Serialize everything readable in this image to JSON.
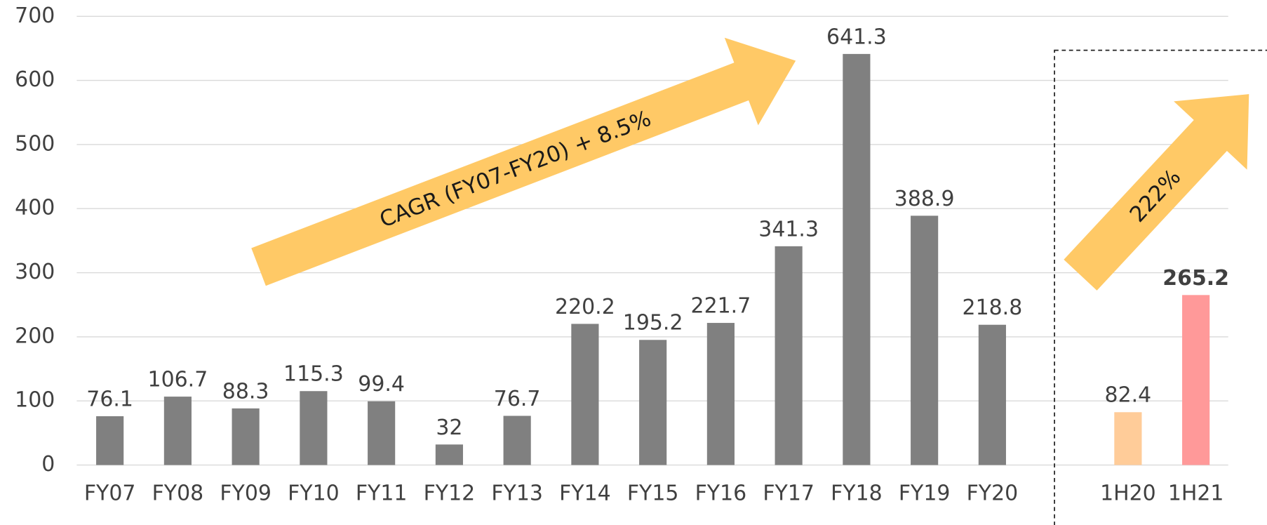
{
  "chart_data": {
    "type": "bar",
    "categories": [
      "FY07",
      "FY08",
      "FY09",
      "FY10",
      "FY11",
      "FY12",
      "FY13",
      "FY14",
      "FY15",
      "FY16",
      "FY17",
      "FY18",
      "FY19",
      "FY20",
      null,
      "1H20",
      "1H21"
    ],
    "values": [
      76.1,
      106.7,
      88.3,
      115.3,
      99.4,
      32,
      76.7,
      220.2,
      195.2,
      221.7,
      341.3,
      641.3,
      388.9,
      218.8,
      null,
      82.4,
      265.2
    ],
    "colors": [
      "#808080",
      "#808080",
      "#808080",
      "#808080",
      "#808080",
      "#808080",
      "#808080",
      "#808080",
      "#808080",
      "#808080",
      "#808080",
      "#808080",
      "#808080",
      "#808080",
      null,
      "#ffcc99",
      "#ff9999"
    ],
    "ylim": [
      0,
      700
    ],
    "yticks": [
      0,
      100,
      200,
      300,
      400,
      500,
      600,
      700
    ],
    "grid": true,
    "annotations": [
      "CAGR (FY07-FY20)  + 8.5%",
      "222%"
    ]
  }
}
